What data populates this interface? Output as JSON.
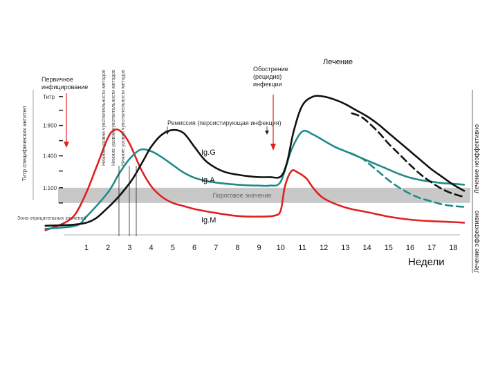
{
  "chart_data": {
    "type": "line",
    "title": "",
    "xlabel": "Недели",
    "ylabel": "Титр специфических антител",
    "xlim": [
      -1,
      18.6
    ],
    "x_ticks": [
      1,
      2,
      3,
      4,
      5,
      6,
      7,
      8,
      9,
      10,
      11,
      12,
      13,
      14,
      15,
      16,
      17,
      18
    ],
    "y_ticks": [
      {
        "label": "Титр",
        "v": 4.55
      },
      {
        "label": "1:800",
        "v": 3.6
      },
      {
        "label": "1:400",
        "v": 2.6
      },
      {
        "label": "1:100",
        "v": 1.55
      }
    ],
    "ylim": [
      0,
      5
    ],
    "threshold_band": {
      "label": "Пороговое значение",
      "y_from": 1.05,
      "y_to": 1.55
    },
    "zone_label": "Зона отрицательных значений",
    "series": [
      {
        "name": "IgG",
        "label": "Ig.G",
        "color": "#111111",
        "style": "solid",
        "x": [
          -0.9,
          1.0,
          2.0,
          3.0,
          3.6,
          4.0,
          4.5,
          5.0,
          5.5,
          6.0,
          6.5,
          7.0,
          7.5,
          8.0,
          8.5,
          9.0,
          9.5,
          10.0,
          10.3,
          10.6,
          11.0,
          11.5,
          12.0,
          12.5,
          13.0,
          13.5,
          14.0,
          14.5,
          15.0,
          15.5,
          16.0,
          16.5,
          17.0,
          17.5,
          18.0,
          18.5
        ],
        "y": [
          0.3,
          0.4,
          0.9,
          1.7,
          2.4,
          2.9,
          3.3,
          3.45,
          3.35,
          2.9,
          2.45,
          2.2,
          2.05,
          1.98,
          1.93,
          1.9,
          1.9,
          1.92,
          2.4,
          3.4,
          4.25,
          4.55,
          4.55,
          4.45,
          4.3,
          4.1,
          3.9,
          3.65,
          3.35,
          3.05,
          2.75,
          2.45,
          2.15,
          1.9,
          1.65,
          1.45
        ]
      },
      {
        "name": "IgG (лечение эффективно)",
        "label": "",
        "color": "#111111",
        "style": "dashed",
        "x": [
          13.3,
          13.8,
          14.5,
          15.0,
          15.5,
          16.0,
          16.5,
          17.0,
          17.5,
          18.0,
          18.5
        ],
        "y": [
          4.0,
          3.85,
          3.4,
          3.0,
          2.65,
          2.3,
          1.98,
          1.72,
          1.5,
          1.35,
          1.25
        ]
      },
      {
        "name": "IgA",
        "label": "Ig.A",
        "color": "#1f8a8a",
        "style": "solid",
        "x": [
          -0.9,
          0.5,
          1.0,
          2.0,
          2.5,
          3.0,
          3.5,
          4.0,
          4.5,
          5.0,
          5.5,
          6.0,
          6.5,
          7.0,
          7.5,
          8.0,
          8.5,
          9.0,
          9.5,
          10.0,
          10.5,
          11.0,
          11.5,
          12.0,
          12.5,
          13.0,
          13.5,
          14.0,
          14.5,
          15.0,
          15.5,
          16.0,
          16.5,
          17.0,
          17.5,
          18.0,
          18.5
        ],
        "y": [
          0.2,
          0.3,
          0.6,
          1.4,
          2.0,
          2.5,
          2.8,
          2.75,
          2.55,
          2.3,
          2.05,
          1.88,
          1.78,
          1.72,
          1.68,
          1.65,
          1.63,
          1.62,
          1.62,
          1.75,
          2.8,
          3.4,
          3.3,
          3.1,
          2.9,
          2.75,
          2.6,
          2.45,
          2.3,
          2.15,
          2.0,
          1.88,
          1.8,
          1.75,
          1.7,
          1.68,
          1.65
        ]
      },
      {
        "name": "IgA (лечение эффективно)",
        "label": "",
        "color": "#1f8a8a",
        "style": "dashed",
        "x": [
          13.2,
          13.8,
          14.5,
          15.0,
          15.5,
          16.0,
          16.5,
          17.0,
          17.5,
          18.0,
          18.5
        ],
        "y": [
          2.7,
          2.5,
          2.1,
          1.8,
          1.55,
          1.35,
          1.2,
          1.1,
          1.0,
          0.95,
          0.92
        ]
      },
      {
        "name": "IgM",
        "label": "Ig.M",
        "color": "#e02020",
        "style": "solid",
        "x": [
          -0.9,
          0.0,
          0.5,
          1.0,
          1.5,
          2.0,
          2.3,
          2.6,
          3.0,
          3.5,
          4.0,
          4.5,
          5.0,
          5.5,
          6.0,
          7.0,
          8.0,
          9.0,
          9.7,
          10.0,
          10.2,
          10.5,
          10.8,
          11.2,
          11.5,
          12.0,
          13.0,
          14.0,
          15.0,
          16.0,
          17.0,
          18.0,
          18.5
        ],
        "y": [
          0.15,
          0.4,
          0.7,
          1.4,
          2.3,
          3.2,
          3.45,
          3.4,
          3.0,
          2.2,
          1.6,
          1.25,
          1.05,
          0.95,
          0.85,
          0.72,
          0.62,
          0.6,
          0.63,
          0.8,
          1.6,
          2.1,
          2.05,
          1.85,
          1.55,
          1.2,
          0.9,
          0.75,
          0.6,
          0.5,
          0.45,
          0.42,
          0.4
        ]
      }
    ],
    "vertical_text": [
      "Титр специфических антител",
      "Нижние уровни чувствительности методов",
      "Лечение неэффективно",
      "Лечение эффективно"
    ],
    "annotations": [
      {
        "text": "Первичное инфицирование"
      },
      {
        "text": "Обострение (рецидив) инфекции"
      },
      {
        "text": "Лечение"
      },
      {
        "text": "Ремиссия (персистирующая инфекция)"
      }
    ]
  }
}
